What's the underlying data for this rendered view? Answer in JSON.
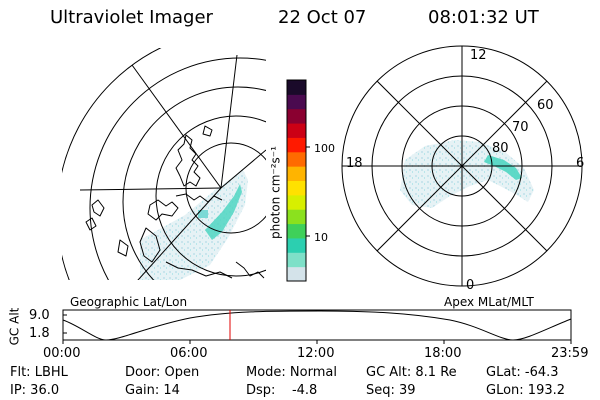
{
  "header": {
    "title": "Ultraviolet Imager",
    "date": "22 Oct 07",
    "time": "08:01:32 UT"
  },
  "colorbar": {
    "unit_label": "photon cm⁻²s⁻¹",
    "ticks": [
      "100",
      "10"
    ],
    "colors": [
      "#d4e3ea",
      "#7ee0c8",
      "#2ccfb0",
      "#3fd05a",
      "#8be11e",
      "#d7ef00",
      "#ffe100",
      "#ffb400",
      "#ff6a00",
      "#ff1a00",
      "#cc0015",
      "#8a0030",
      "#4a0a4f",
      "#1a0a2a"
    ]
  },
  "geo_map": {
    "caption": "Geographic Lat/Lon"
  },
  "polar_map": {
    "caption": "Apex MLat/MLT",
    "mlt_labels": {
      "top": "12",
      "left": "18",
      "right": "6",
      "bottom": "0"
    },
    "lat_labels": [
      "60",
      "70",
      "80"
    ]
  },
  "altitude_plot": {
    "ylabel": "GC Alt",
    "y_ticks": [
      "9.0",
      "1.8"
    ],
    "x_ticks": [
      "00:00",
      "06:00",
      "12:00",
      "18:00",
      "23:59"
    ],
    "current_time_marker": "08:01:32"
  },
  "info": {
    "filter": "Flt: LBHL",
    "door": "Door: Open",
    "mode": "Mode: Normal",
    "gc_alt": "GC Alt: 8.1 Re",
    "glat": "GLat: -64.3",
    "ip": "IP: 36.0",
    "gain": "Gain: 14",
    "dsp": "Dsp:    -4.8",
    "seq": "Seq: 39",
    "glon": "GLon: 193.2"
  }
}
